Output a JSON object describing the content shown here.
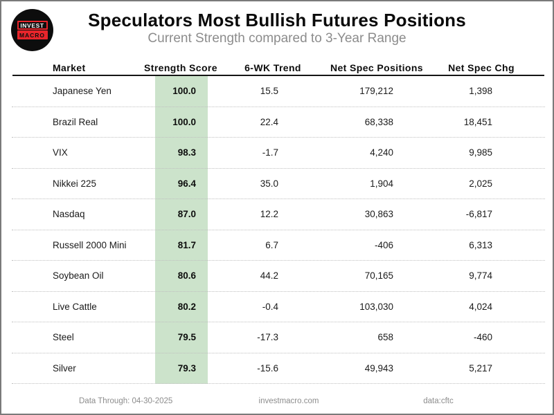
{
  "logo": {
    "line1": "INVEST",
    "line2": "MACRO"
  },
  "chart_data": {
    "type": "table",
    "title": "Speculators Most Bullish Futures Positions",
    "subtitle": "Current Strength compared to 3-Year Range",
    "columns": [
      "Market",
      "Strength Score",
      "6-WK Trend",
      "Net Spec Positions",
      "Net Spec Chg"
    ],
    "rows": [
      [
        "Japanese Yen",
        "100.0",
        "15.5",
        "179,212",
        "1,398"
      ],
      [
        "Brazil Real",
        "100.0",
        "22.4",
        "68,338",
        "18,451"
      ],
      [
        "VIX",
        "98.3",
        "-1.7",
        "4,240",
        "9,985"
      ],
      [
        "Nikkei 225",
        "96.4",
        "35.0",
        "1,904",
        "2,025"
      ],
      [
        "Nasdaq",
        "87.0",
        "12.2",
        "30,863",
        "-6,817"
      ],
      [
        "Russell 2000 Mini",
        "81.7",
        "6.7",
        "-406",
        "6,313"
      ],
      [
        "Soybean Oil",
        "80.6",
        "44.2",
        "70,165",
        "9,774"
      ],
      [
        "Live Cattle",
        "80.2",
        "-0.4",
        "103,030",
        "4,024"
      ],
      [
        "Steel",
        "79.5",
        "-17.3",
        "658",
        "-460"
      ],
      [
        "Silver",
        "79.3",
        "-15.6",
        "49,943",
        "5,217"
      ]
    ],
    "highlight_column": "Strength Score",
    "highlight_color": "#cce3cb",
    "layout": {
      "grid": "dotted row separators",
      "header_rule": "solid black"
    }
  },
  "footer": {
    "data_through": "Data Through: 04-30-2025",
    "site": "investmacro.com",
    "source": "data:cftc"
  },
  "colors": {
    "score_highlight": "#cce3cb",
    "logo_red": "#e8252b",
    "subtitle_gray": "#8c8c8c",
    "border_gray": "#7a7a7a"
  }
}
